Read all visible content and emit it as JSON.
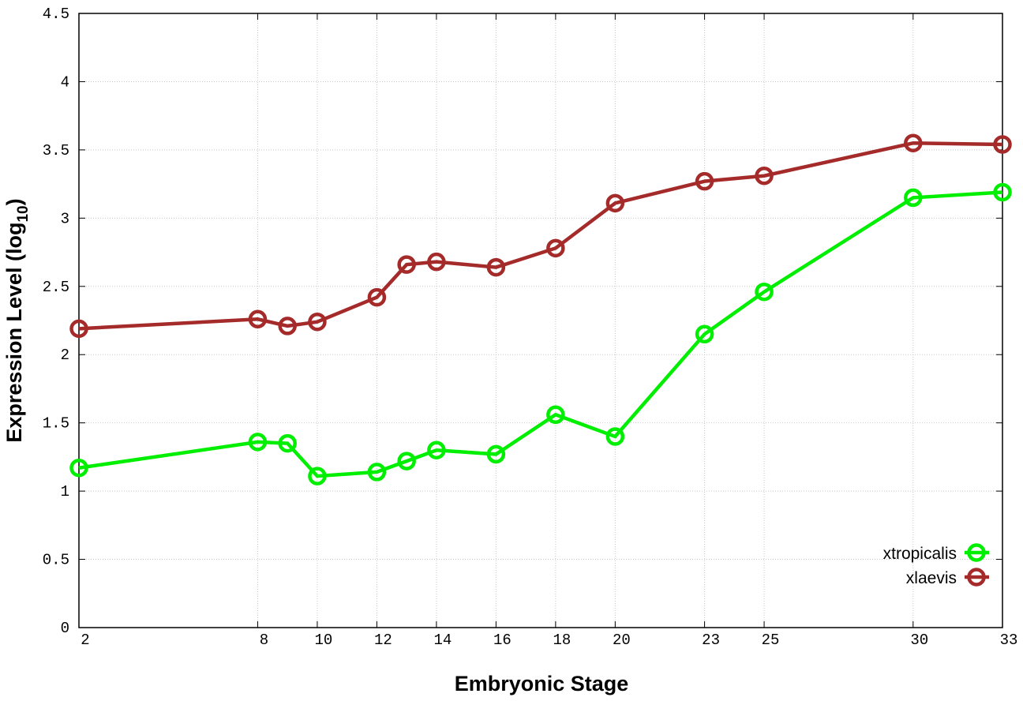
{
  "chart_data": {
    "type": "line",
    "title": "",
    "xlabel": "Embryonic Stage",
    "ylabel": "Expression Level (log",
    "ylabel_sub": "10",
    "ylabel_close": ")",
    "xlim": [
      2,
      33
    ],
    "ylim": [
      0,
      4.5
    ],
    "grid": true,
    "legend_position": "bottom-right",
    "x": [
      2,
      8,
      9,
      10,
      12,
      13,
      14,
      16,
      18,
      20,
      23,
      25,
      30,
      33
    ],
    "xticks": [
      "2",
      "8",
      "10",
      "12",
      "14",
      "16",
      "18",
      "20",
      "23",
      "25",
      "30",
      "33"
    ],
    "xtick_values": [
      2,
      8,
      10,
      12,
      14,
      16,
      18,
      20,
      23,
      25,
      30,
      33
    ],
    "yticks": [
      "0",
      "0.5",
      "1",
      "1.5",
      "2",
      "2.5",
      "3",
      "3.5",
      "4",
      "4.5"
    ],
    "ytick_values": [
      0,
      0.5,
      1,
      1.5,
      2,
      2.5,
      3,
      3.5,
      4,
      4.5
    ],
    "series": [
      {
        "name": "xtropicalis",
        "color": "#00ee00",
        "values": [
          1.17,
          1.36,
          1.35,
          1.11,
          1.14,
          1.22,
          1.3,
          1.27,
          1.56,
          1.4,
          2.15,
          2.46,
          3.15,
          3.19
        ]
      },
      {
        "name": "xlaevis",
        "color": "#a52a2a",
        "values": [
          2.19,
          2.26,
          2.21,
          2.24,
          2.42,
          2.66,
          2.68,
          2.64,
          2.78,
          3.11,
          3.27,
          3.31,
          3.55,
          3.54
        ]
      }
    ]
  }
}
